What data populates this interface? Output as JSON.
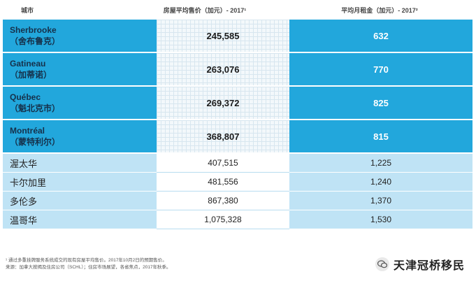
{
  "header": {
    "city": "城市",
    "price": "房屋平均售价（加元）- 2017¹",
    "rent": "平均月租金（加元）- 2017²"
  },
  "quebec_rows": [
    {
      "en": "Sherbrooke",
      "zh": "（舍布鲁克）",
      "price": "245,585",
      "rent": "632"
    },
    {
      "en": "Gatineau",
      "zh": "（加蒂诺）",
      "price": "263,076",
      "rent": "770"
    },
    {
      "en": "Québec",
      "zh": "（魁北克市）",
      "price": "269,372",
      "rent": "825"
    },
    {
      "en": "Montréal",
      "zh": "（蒙特利尔）",
      "price": "368,807",
      "rent": "815"
    }
  ],
  "other_rows": [
    {
      "zh": "渥太华",
      "price": "407,515",
      "rent": "1,225"
    },
    {
      "zh": "卡尔加里",
      "price": "481,556",
      "rent": "1,240"
    },
    {
      "zh": "多伦多",
      "price": "867,380",
      "rent": "1,370"
    },
    {
      "zh": "温哥华",
      "price": "1,075,328",
      "rent": "1,530"
    }
  ],
  "footnotes": {
    "note1": "¹ 通过多重挂牌服务系统成交的现有房屋平均售价。2017年10月2日的预期售价。",
    "note2": "来源：加拿大按揭及住房公司（SCHL）；住房市场展望，各省焦点，2017年秋季。"
  },
  "brand": {
    "logo_icon": "wechat-icon",
    "name": "天津冠桥移民"
  }
}
